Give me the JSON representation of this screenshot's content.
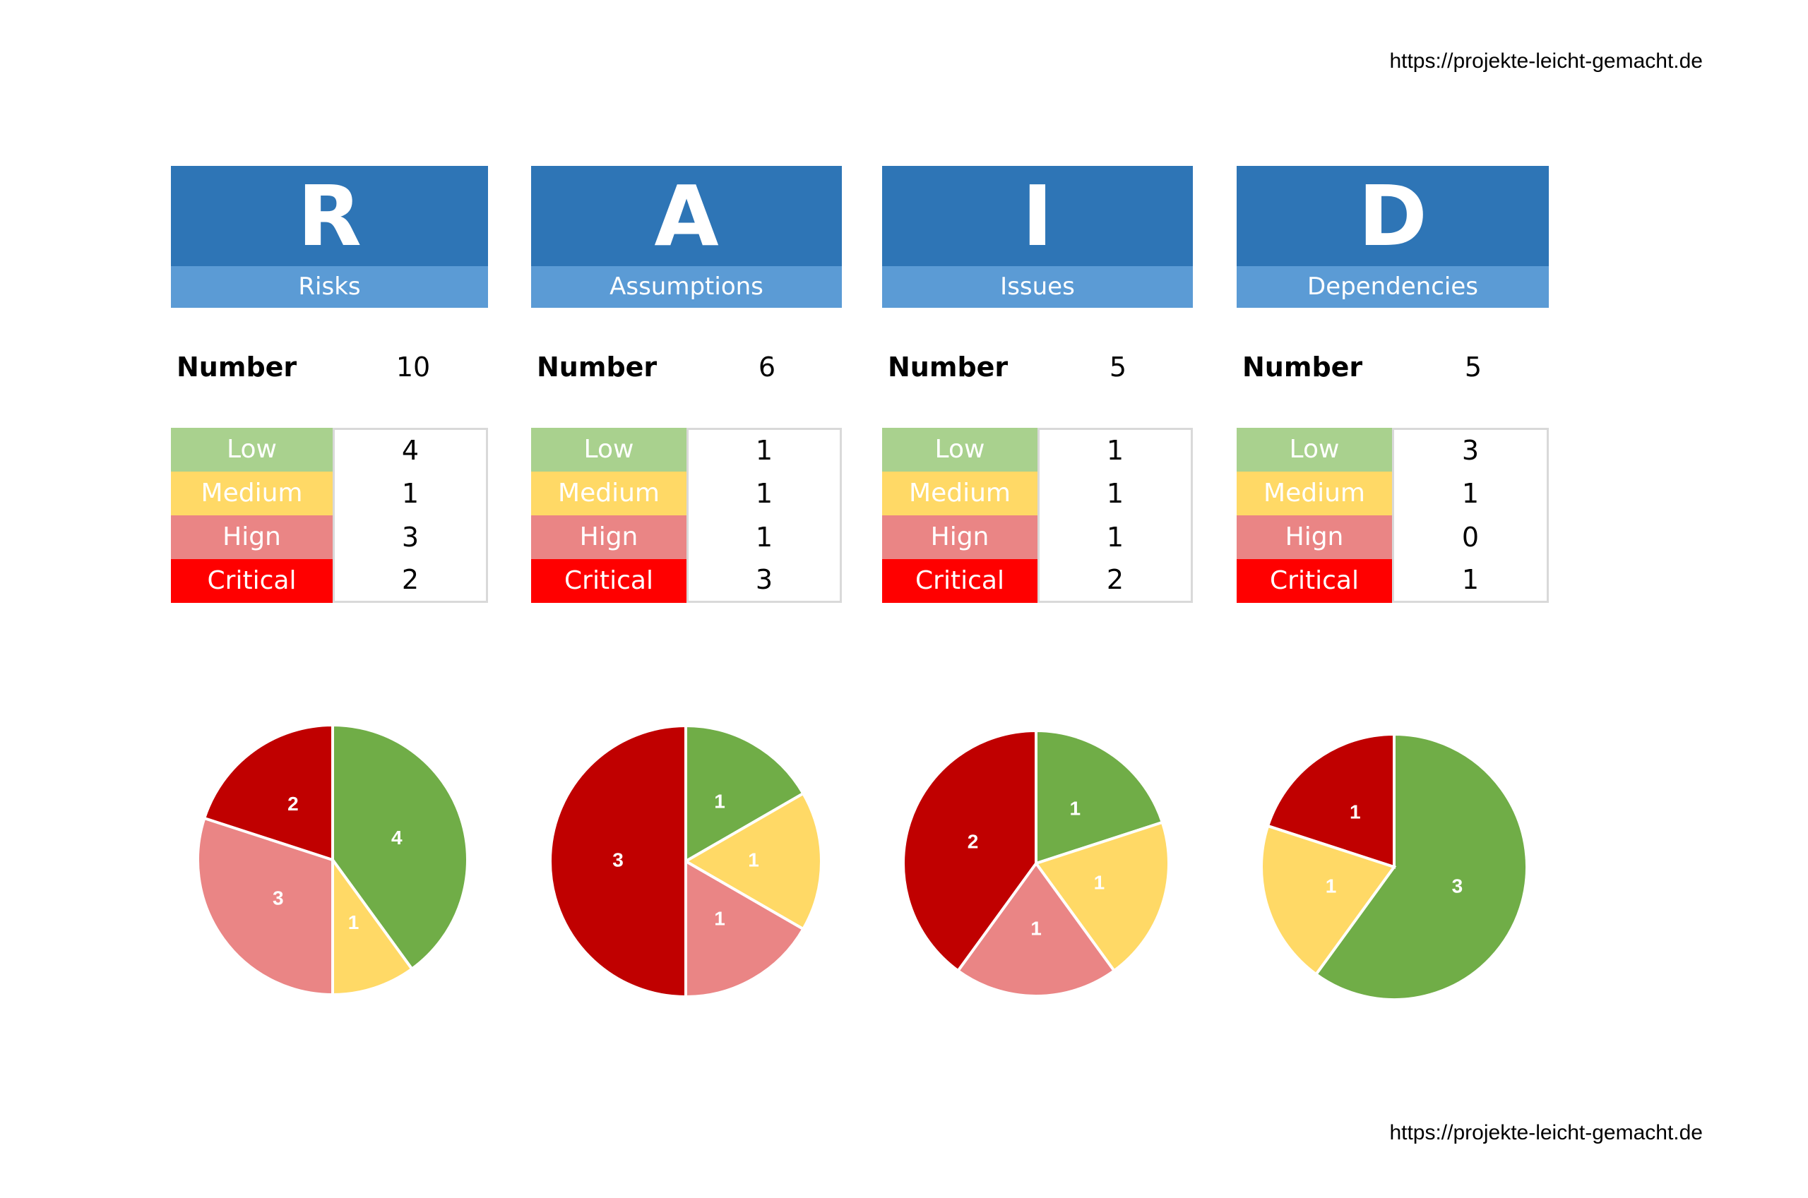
{
  "source_url": "https://projekte-leicht-gemacht.de",
  "number_label": "Number",
  "level_labels": [
    "Low",
    "Medium",
    "Hign",
    "Critical"
  ],
  "colors": {
    "header_dark": "#2E75B6",
    "header_light": "#5B9BD5",
    "table": [
      "#A9D18E",
      "#FFD966",
      "#EA8585",
      "#FF0000"
    ],
    "pie": [
      "#70AD47",
      "#FFD966",
      "#EA8585",
      "#C00000"
    ]
  },
  "categories": [
    {
      "letter": "R",
      "name": "Risks",
      "number": "10",
      "counts": [
        4,
        1,
        3,
        2
      ]
    },
    {
      "letter": "A",
      "name": "Assumptions",
      "number": "6",
      "counts": [
        1,
        1,
        1,
        3
      ]
    },
    {
      "letter": "I",
      "name": "Issues",
      "number": "5",
      "counts": [
        1,
        1,
        1,
        2
      ]
    },
    {
      "letter": "D",
      "name": "Dependencies",
      "number": "5",
      "counts": [
        3,
        1,
        0,
        1
      ]
    }
  ],
  "chart_data": [
    {
      "type": "pie",
      "categories": [
        "Low",
        "Medium",
        "Hign",
        "Critical"
      ],
      "values": [
        4,
        1,
        3,
        2
      ]
    },
    {
      "type": "pie",
      "categories": [
        "Low",
        "Medium",
        "Hign",
        "Critical"
      ],
      "values": [
        1,
        1,
        1,
        3
      ]
    },
    {
      "type": "pie",
      "categories": [
        "Low",
        "Medium",
        "Hign",
        "Critical"
      ],
      "values": [
        1,
        1,
        1,
        2
      ]
    },
    {
      "type": "pie",
      "categories": [
        "Low",
        "Medium",
        "Hign",
        "Critical"
      ],
      "values": [
        3,
        1,
        0,
        1
      ]
    }
  ]
}
